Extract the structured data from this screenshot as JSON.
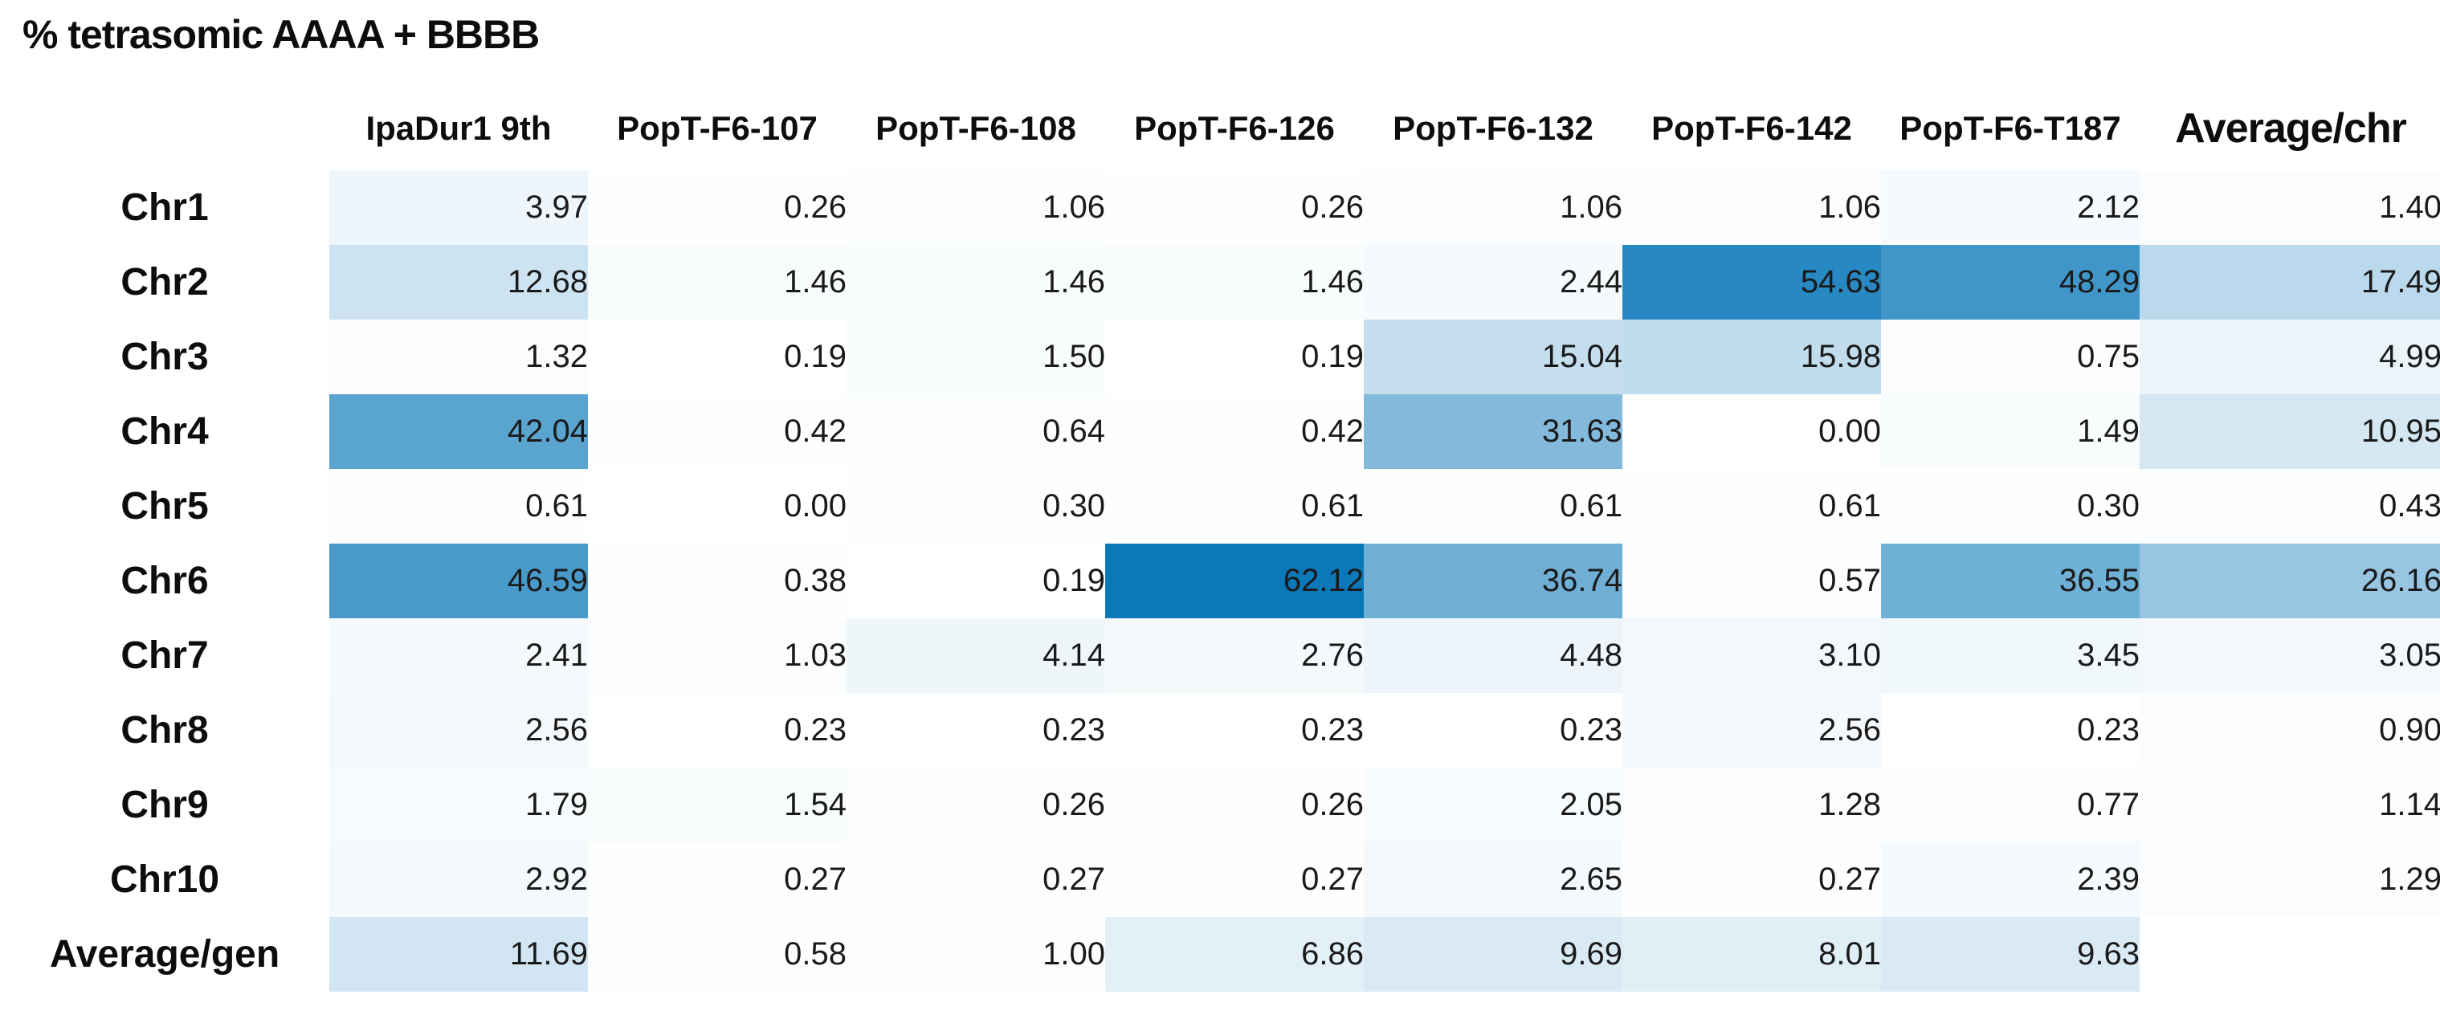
{
  "title": "% tetrasomic AAAA + BBBB",
  "chart_data": {
    "type": "heatmap",
    "title": "% tetrasomic AAAA + BBBB",
    "columns": [
      "IpaDur1 9th",
      "PopT-F6-107",
      "PopT-F6-108",
      "PopT-F6-126",
      "PopT-F6-132",
      "PopT-F6-142",
      "PopT-F6-T187",
      "Average/chr"
    ],
    "rows": [
      {
        "label": "Chr1",
        "values": [
          "3.97",
          "0.26",
          "1.06",
          "0.26",
          "1.06",
          "1.06",
          "2.12",
          "1.40"
        ]
      },
      {
        "label": "Chr2",
        "values": [
          "12.68",
          "1.46",
          "1.46",
          "1.46",
          "2.44",
          "54.63",
          "48.29",
          "17.49"
        ]
      },
      {
        "label": "Chr3",
        "values": [
          "1.32",
          "0.19",
          "1.50",
          "0.19",
          "15.04",
          "15.98",
          "0.75",
          "4.99"
        ]
      },
      {
        "label": "Chr4",
        "values": [
          "42.04",
          "0.42",
          "0.64",
          "0.42",
          "31.63",
          "0.00",
          "1.49",
          "10.95"
        ]
      },
      {
        "label": "Chr5",
        "values": [
          "0.61",
          "0.00",
          "0.30",
          "0.61",
          "0.61",
          "0.61",
          "0.30",
          "0.43"
        ]
      },
      {
        "label": "Chr6",
        "values": [
          "46.59",
          "0.38",
          "0.19",
          "62.12",
          "36.74",
          "0.57",
          "36.55",
          "26.16"
        ]
      },
      {
        "label": "Chr7",
        "values": [
          "2.41",
          "1.03",
          "4.14",
          "2.76",
          "4.48",
          "3.10",
          "3.45",
          "3.05"
        ]
      },
      {
        "label": "Chr8",
        "values": [
          "2.56",
          "0.23",
          "0.23",
          "0.23",
          "0.23",
          "2.56",
          "0.23",
          "0.90"
        ]
      },
      {
        "label": "Chr9",
        "values": [
          "1.79",
          "1.54",
          "0.26",
          "0.26",
          "2.05",
          "1.28",
          "0.77",
          "1.14"
        ]
      },
      {
        "label": "Chr10",
        "values": [
          "2.92",
          "0.27",
          "0.27",
          "0.27",
          "2.65",
          "0.27",
          "2.39",
          "1.29"
        ]
      },
      {
        "label": "Average/gen",
        "values": [
          "11.69",
          "0.58",
          "1.00",
          "6.86",
          "9.69",
          "8.01",
          "9.63",
          null
        ]
      }
    ],
    "color_scale": {
      "min_value": 0,
      "max_value": 62.12,
      "min_color": "#FFFFFF",
      "max_color": "#0B78BA"
    },
    "value_text_color": "#1a1a1a",
    "legend_position": "none",
    "grid": false
  }
}
